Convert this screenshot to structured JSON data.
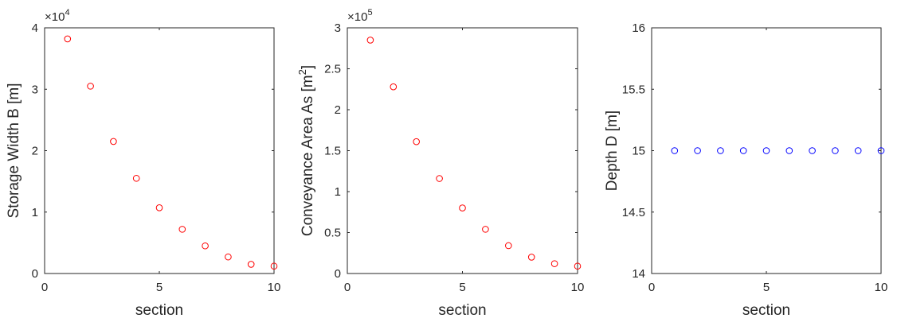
{
  "chart_data": [
    {
      "type": "scatter",
      "xlabel": "section",
      "ylabel": "Storage Width B [m]",
      "ylabel_sup": "",
      "ylabel_end": "",
      "exponent_base": "×10",
      "exponent_power": "4",
      "xlim": [
        0,
        10
      ],
      "ylim": [
        0,
        4
      ],
      "xticks": [
        0,
        5,
        10
      ],
      "yticks": [
        0,
        1,
        2,
        3,
        4
      ],
      "ytick_labels": [
        "0",
        "1",
        "2",
        "3",
        "4"
      ],
      "marker_color": "#ff0000",
      "x": [
        1,
        2,
        3,
        4,
        5,
        6,
        7,
        8,
        9,
        10
      ],
      "y": [
        3.82,
        3.05,
        2.15,
        1.55,
        1.07,
        0.72,
        0.45,
        0.27,
        0.15,
        0.12
      ],
      "grid": false
    },
    {
      "type": "scatter",
      "xlabel": "section",
      "ylabel": "Conveyance Area As [m",
      "ylabel_sup": "2",
      "ylabel_end": "]",
      "exponent_base": "×10",
      "exponent_power": "5",
      "xlim": [
        0,
        10
      ],
      "ylim": [
        0,
        3
      ],
      "xticks": [
        0,
        5,
        10
      ],
      "yticks": [
        0,
        0.5,
        1,
        1.5,
        2,
        2.5,
        3
      ],
      "ytick_labels": [
        "0",
        "0.5",
        "1",
        "1.5",
        "2",
        "2.5",
        "3"
      ],
      "marker_color": "#ff0000",
      "x": [
        1,
        2,
        3,
        4,
        5,
        6,
        7,
        8,
        9,
        10
      ],
      "y": [
        2.85,
        2.28,
        1.61,
        1.16,
        0.8,
        0.54,
        0.34,
        0.2,
        0.12,
        0.09
      ],
      "grid": false
    },
    {
      "type": "scatter",
      "xlabel": "section",
      "ylabel": "Depth D [m]",
      "ylabel_sup": "",
      "ylabel_end": "",
      "exponent_base": "",
      "exponent_power": "",
      "xlim": [
        0,
        10
      ],
      "ylim": [
        14,
        16
      ],
      "xticks": [
        0,
        5,
        10
      ],
      "yticks": [
        14,
        14.5,
        15,
        15.5,
        16
      ],
      "ytick_labels": [
        "14",
        "14.5",
        "15",
        "15.5",
        "16"
      ],
      "marker_color": "#0000ff",
      "x": [
        1,
        2,
        3,
        4,
        5,
        6,
        7,
        8,
        9,
        10
      ],
      "y": [
        15,
        15,
        15,
        15,
        15,
        15,
        15,
        15,
        15,
        15
      ],
      "grid": false
    }
  ]
}
